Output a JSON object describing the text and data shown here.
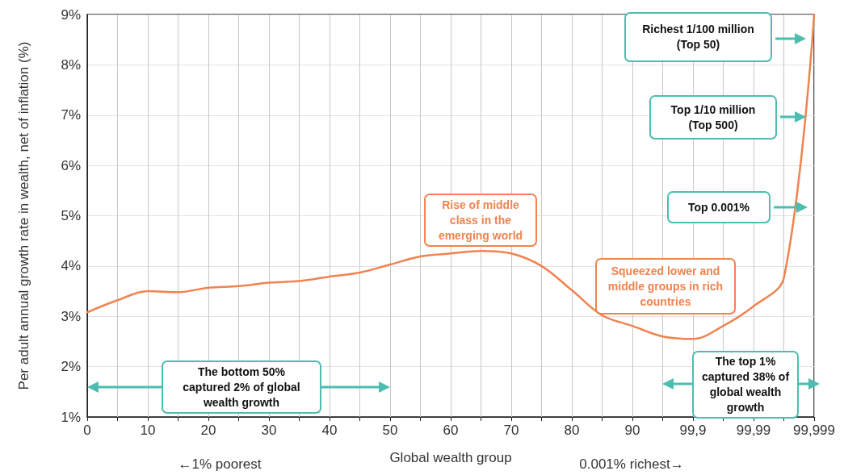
{
  "chart_data": {
    "type": "line",
    "xlabel": "Global wealth group",
    "ylabel": "Per adult annual growth rate in wealth, net of inflation (%)",
    "categories": [
      "0",
      null,
      "10",
      null,
      "20",
      null,
      "30",
      null,
      "40",
      null,
      "50",
      null,
      "60",
      null,
      "70",
      null,
      "80",
      null,
      "90",
      null,
      "99,9",
      null,
      "99,99",
      null,
      "99,999"
    ],
    "values": [
      3.08,
      3.32,
      3.5,
      3.48,
      3.57,
      3.6,
      3.67,
      3.7,
      3.79,
      3.87,
      4.03,
      4.19,
      4.25,
      4.3,
      4.25,
      4.0,
      3.52,
      3.02,
      2.81,
      2.6,
      2.55,
      2.81,
      3.2,
      3.76,
      9.0
    ],
    "color": "#f0834f",
    "ylim": [
      1,
      9
    ],
    "yticks": [
      {
        "value": 1,
        "label": "1%"
      },
      {
        "value": 2,
        "label": "2%"
      },
      {
        "value": 3,
        "label": "3%"
      },
      {
        "value": 4,
        "label": "4%"
      },
      {
        "value": 5,
        "label": "5%"
      },
      {
        "value": 6,
        "label": "6%"
      },
      {
        "value": 7,
        "label": "7%"
      },
      {
        "value": 8,
        "label": "8%"
      },
      {
        "value": 9,
        "label": "9%"
      }
    ],
    "grid": true,
    "marker": "none",
    "line_style": "solid",
    "annotations": [
      "Rise of middle class in the emerging world",
      "Squeezed lower and middle groups in rich countries",
      "Richest 1/100 million (Top 50)",
      "Top 1/10 million (Top 500)",
      "Top 0.001%",
      "The bottom 50% captured 2% of global wealth growth",
      "The top 1% captured 38% of global wealth growth",
      "←1% poorest",
      "0.001% richest→"
    ]
  }
}
